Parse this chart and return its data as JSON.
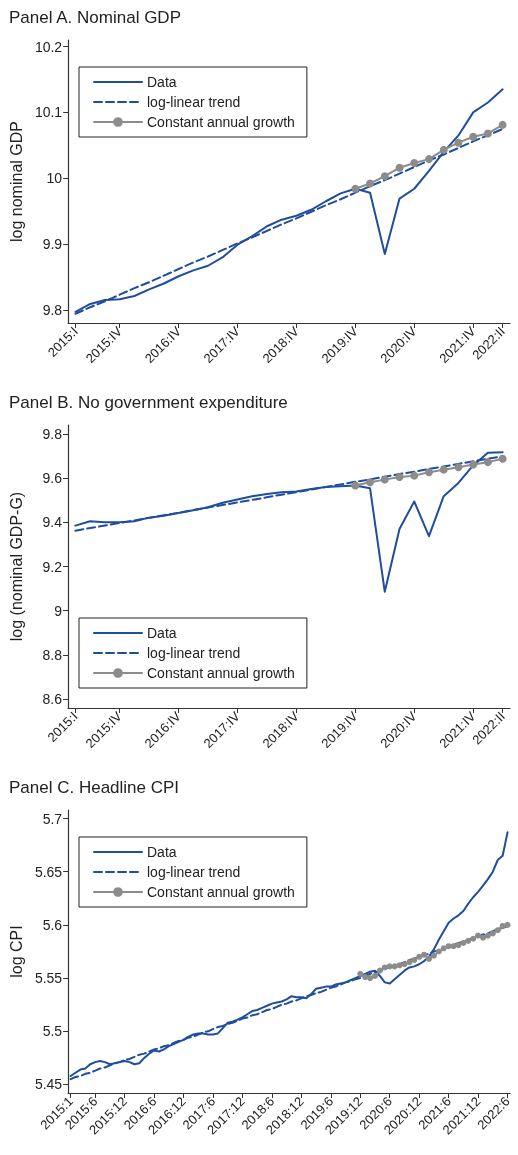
{
  "chart_data": [
    {
      "type": "line",
      "title": "Panel A. Nominal GDP",
      "ylabel": "log nominal GDP",
      "legend": "top left",
      "categories": [
        "2015:I",
        null,
        null,
        "2015:IV",
        null,
        null,
        null,
        "2016:IV",
        null,
        null,
        null,
        "2017:IV",
        null,
        null,
        null,
        "2018:IV",
        null,
        null,
        null,
        "2019:IV",
        null,
        null,
        null,
        "2020:IV",
        null,
        null,
        null,
        "2021:IV",
        null,
        "2022:II"
      ],
      "ylim": [
        9.78,
        10.21
      ],
      "yticks": [
        9.8,
        9.9,
        10,
        10.1,
        10.2
      ],
      "series": [
        {
          "name": "Data",
          "color": "#1f4e9e",
          "line_style": "solid",
          "marker": "none",
          "values": [
            9.797,
            9.809,
            9.815,
            9.816,
            9.821,
            9.831,
            9.84,
            9.851,
            9.86,
            9.867,
            9.88,
            9.899,
            9.912,
            9.927,
            9.937,
            9.943,
            9.952,
            9.965,
            9.977,
            9.984,
            9.978,
            9.885,
            9.969,
            9.984,
            10.011,
            10.04,
            10.065,
            10.1,
            10.115,
            10.135
          ]
        },
        {
          "name": "log-linear trend",
          "color": "#1f4e9e",
          "line_style": "dashed",
          "marker": "none",
          "values": [
            9.794,
            9.804,
            9.813,
            9.823,
            9.833,
            9.842,
            9.852,
            9.862,
            9.872,
            9.881,
            9.891,
            9.901,
            9.91,
            9.92,
            9.93,
            9.939,
            9.949,
            9.959,
            9.968,
            9.978,
            9.988,
            9.997,
            10.007,
            10.017,
            10.027,
            10.036,
            10.046,
            10.056,
            10.065,
            10.075
          ]
        },
        {
          "name": "Constant annual growth",
          "color": "#8c8c8c",
          "line_style": "solid",
          "marker": "circle",
          "values": [
            null,
            null,
            null,
            null,
            null,
            null,
            null,
            null,
            null,
            null,
            null,
            null,
            null,
            null,
            null,
            null,
            null,
            null,
            null,
            9.984,
            9.992,
            10.003,
            10.016,
            10.023,
            10.029,
            10.043,
            10.054,
            10.063,
            10.068,
            10.081
          ]
        }
      ]
    },
    {
      "type": "line",
      "title": "Panel B. No government expenditure",
      "ylabel": "log (nominal GDP-G)",
      "legend": "bottom left",
      "categories": [
        "2015:I",
        null,
        null,
        "2015:IV",
        null,
        null,
        null,
        "2016:IV",
        null,
        null,
        null,
        "2017:IV",
        null,
        null,
        null,
        "2018:IV",
        null,
        null,
        null,
        "2019:IV",
        null,
        null,
        null,
        "2020:IV",
        null,
        null,
        null,
        "2021:IV",
        null,
        "2022:II"
      ],
      "ylim": [
        8.56,
        9.84
      ],
      "yticks": [
        8.6,
        8.8,
        9,
        9.2,
        9.4,
        9.6,
        9.8
      ],
      "series": [
        {
          "name": "Data",
          "color": "#1f4e9e",
          "line_style": "solid",
          "marker": "none",
          "values": [
            9.385,
            9.405,
            9.4,
            9.4,
            9.405,
            9.421,
            9.43,
            9.442,
            9.454,
            9.468,
            9.488,
            9.503,
            9.518,
            9.528,
            9.536,
            9.539,
            9.551,
            9.56,
            9.563,
            9.566,
            9.554,
            9.086,
            9.37,
            9.494,
            9.337,
            9.518,
            9.578,
            9.657,
            9.714,
            9.717
          ]
        },
        {
          "name": "log-linear trend",
          "color": "#1f4e9e",
          "line_style": "dashed",
          "marker": "none",
          "values": [
            9.362,
            9.374,
            9.385,
            9.397,
            9.408,
            9.42,
            9.432,
            9.443,
            9.455,
            9.467,
            9.478,
            9.49,
            9.501,
            9.513,
            9.525,
            9.536,
            9.548,
            9.56,
            9.571,
            9.583,
            9.594,
            9.606,
            9.618,
            9.629,
            9.641,
            9.652,
            9.664,
            9.676,
            9.687,
            9.699
          ]
        },
        {
          "name": "Constant annual growth",
          "color": "#8c8c8c",
          "line_style": "solid",
          "marker": "circle",
          "values": [
            null,
            null,
            null,
            null,
            null,
            null,
            null,
            null,
            null,
            null,
            null,
            null,
            null,
            null,
            null,
            null,
            null,
            null,
            null,
            9.566,
            9.581,
            9.593,
            9.605,
            9.611,
            9.626,
            9.638,
            9.649,
            9.661,
            9.672,
            9.687
          ]
        }
      ]
    },
    {
      "type": "line",
      "title": "Panel C. Headline CPI",
      "ylabel": "log CPI",
      "legend": "top left",
      "categories": [
        "2015:1",
        null,
        null,
        null,
        null,
        "2015:6",
        null,
        null,
        null,
        null,
        null,
        "2015:12",
        null,
        null,
        null,
        null,
        null,
        "2016:6",
        null,
        null,
        null,
        null,
        null,
        "2016:12",
        null,
        null,
        null,
        null,
        null,
        "2017:6",
        null,
        null,
        null,
        null,
        null,
        "2017:12",
        null,
        null,
        null,
        null,
        null,
        "2018:6",
        null,
        null,
        null,
        null,
        null,
        "2018:12",
        null,
        null,
        null,
        null,
        null,
        "2019:6",
        null,
        null,
        null,
        null,
        null,
        "2019:12",
        null,
        null,
        null,
        null,
        null,
        "2020:6",
        null,
        null,
        null,
        null,
        null,
        "2020:12",
        null,
        null,
        null,
        null,
        null,
        "2021:6",
        null,
        null,
        null,
        null,
        null,
        "2021:12",
        null,
        null,
        null,
        null,
        null,
        "2022:6"
      ],
      "ylim": [
        5.442,
        5.708
      ],
      "yticks": [
        5.45,
        5.5,
        5.55,
        5.6,
        5.65,
        5.7
      ],
      "series": [
        {
          "name": "Data",
          "color": "#1f4e9e",
          "line_style": "solid",
          "marker": "none",
          "values": [
            5.458,
            5.461,
            5.464,
            5.465,
            5.469,
            5.471,
            5.472,
            5.471,
            5.469,
            5.47,
            5.471,
            5.472,
            5.471,
            5.469,
            5.47,
            5.475,
            5.479,
            5.482,
            5.481,
            5.483,
            5.486,
            5.488,
            5.49,
            5.492,
            5.495,
            5.497,
            5.498,
            5.498,
            5.497,
            5.497,
            5.498,
            5.503,
            5.508,
            5.509,
            5.511,
            5.513,
            5.516,
            5.519,
            5.52,
            5.522,
            5.524,
            5.526,
            5.527,
            5.528,
            5.53,
            5.533,
            5.532,
            5.532,
            5.531,
            5.535,
            5.54,
            5.541,
            5.542,
            5.542,
            5.544,
            5.545,
            5.546,
            5.548,
            5.55,
            5.552,
            5.554,
            5.556,
            5.557,
            5.552,
            5.546,
            5.545,
            5.549,
            5.553,
            5.557,
            5.56,
            5.561,
            5.563,
            5.566,
            5.57,
            5.577,
            5.586,
            5.594,
            5.602,
            5.606,
            5.609,
            5.613,
            5.62,
            5.626,
            5.631,
            5.637,
            5.643,
            5.65,
            5.661,
            5.665,
            5.687
          ]
        },
        {
          "name": "log-linear trend",
          "color": "#1f4e9e",
          "line_style": "dashed",
          "marker": "none",
          "values": [
            5.455,
            5.457,
            5.458,
            5.46,
            5.461,
            5.463,
            5.465,
            5.466,
            5.468,
            5.47,
            5.471,
            5.473,
            5.474,
            5.476,
            5.478,
            5.479,
            5.481,
            5.483,
            5.484,
            5.486,
            5.487,
            5.489,
            5.491,
            5.492,
            5.494,
            5.495,
            5.497,
            5.499,
            5.5,
            5.502,
            5.504,
            5.505,
            5.507,
            5.508,
            5.51,
            5.512,
            5.513,
            5.515,
            5.516,
            5.518,
            5.52,
            5.521,
            5.523,
            5.525,
            5.526,
            5.528,
            5.529,
            5.531,
            5.533,
            5.534,
            5.536,
            5.537,
            5.539,
            5.541,
            5.542,
            5.544,
            5.546,
            5.547,
            5.549,
            5.55,
            5.552,
            5.554,
            5.555,
            5.557,
            5.559,
            5.56,
            5.562,
            5.563,
            5.565,
            5.567,
            5.568,
            5.57,
            5.571,
            5.573,
            5.575,
            5.576,
            5.578,
            5.58,
            5.581,
            5.583,
            5.584,
            5.586,
            5.588,
            5.589,
            5.591,
            5.592,
            5.594,
            5.596,
            5.597,
            5.599
          ]
        },
        {
          "name": "Constant annual growth",
          "color": "#8c8c8c",
          "line_style": "solid",
          "marker": "circle",
          "values": [
            null,
            null,
            null,
            null,
            null,
            null,
            null,
            null,
            null,
            null,
            null,
            null,
            null,
            null,
            null,
            null,
            null,
            null,
            null,
            null,
            null,
            null,
            null,
            null,
            null,
            null,
            null,
            null,
            null,
            null,
            null,
            null,
            null,
            null,
            null,
            null,
            null,
            null,
            null,
            null,
            null,
            null,
            null,
            null,
            null,
            null,
            null,
            null,
            null,
            null,
            null,
            null,
            null,
            null,
            null,
            null,
            null,
            null,
            null,
            5.554,
            5.551,
            5.55,
            5.552,
            5.557,
            5.56,
            5.561,
            5.561,
            5.562,
            5.563,
            5.565,
            5.567,
            5.57,
            5.572,
            5.568,
            5.571,
            5.575,
            5.578,
            5.58,
            5.58,
            5.581,
            5.583,
            5.585,
            5.587,
            5.59,
            5.588,
            5.59,
            5.592,
            5.595,
            5.599,
            5.6
          ]
        }
      ]
    }
  ]
}
